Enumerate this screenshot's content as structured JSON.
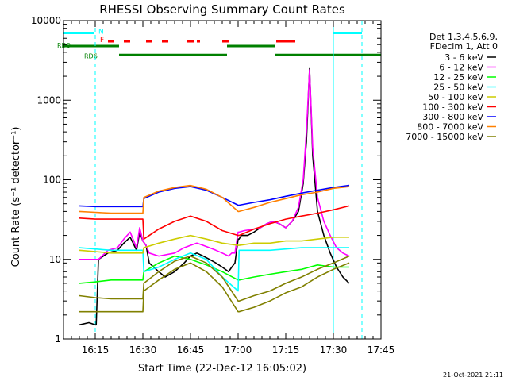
{
  "chart_data": {
    "type": "line",
    "title": "RHESSI Observing Summary Count Rates",
    "xlabel": "Start Time (22-Dec-12 16:05:02)",
    "ylabel": "Count Rate (s⁻¹ detector⁻¹)",
    "y_scale": "log",
    "ylim": [
      1,
      10000
    ],
    "xlim_minutes_after_16_05_02": [
      0,
      100
    ],
    "x_ticks": [
      {
        "label": "16:15",
        "minute": 10
      },
      {
        "label": "16:30",
        "minute": 25
      },
      {
        "label": "16:45",
        "minute": 40
      },
      {
        "label": "17:00",
        "minute": 55
      },
      {
        "label": "17:15",
        "minute": 70
      },
      {
        "label": "17:30",
        "minute": 85
      },
      {
        "label": "17:45",
        "minute": 100
      }
    ],
    "y_ticks": [
      {
        "label": "1",
        "value": 1
      },
      {
        "label": "10",
        "value": 10
      },
      {
        "label": "100",
        "value": 100
      },
      {
        "label": "1000",
        "value": 1000
      },
      {
        "label": "10000",
        "value": 10000
      }
    ],
    "legend_header": [
      "Det 1,3,4,5,6,9,",
      "FDecim 1, Att 0"
    ],
    "legend_placement": "right",
    "timestamp": "21-Oct-2021 21:11",
    "flags": [
      {
        "label": "N",
        "color": "#00ffff",
        "segments": [
          [
            0,
            9.5
          ],
          [
            85,
            94
          ]
        ],
        "level": 7000
      },
      {
        "label": "F",
        "color": "#ff0000",
        "segments": [
          [
            14,
            16
          ],
          [
            19,
            21
          ],
          [
            26,
            28
          ],
          [
            31,
            33
          ],
          [
            39,
            41
          ],
          [
            42,
            43
          ],
          [
            50,
            52
          ],
          [
            67,
            73
          ]
        ],
        "level": 5500
      },
      {
        "label": "RD0",
        "color": "#008000",
        "segments": [
          [
            0,
            17.5
          ],
          [
            51.5,
            66.5
          ]
        ],
        "level": 4800
      },
      {
        "label": "RD6",
        "color": "#008000",
        "segments": [
          [
            17.5,
            51.5
          ],
          [
            66.5,
            100
          ]
        ],
        "level": 3700
      }
    ],
    "vertical_markers": [
      {
        "minute": 10,
        "color": "#00ffff",
        "style": "dashed"
      },
      {
        "minute": 85,
        "color": "#00ffff",
        "style": "solid"
      },
      {
        "minute": 94,
        "color": "#00ffff",
        "style": "dashed"
      }
    ],
    "series": [
      {
        "name": "3 - 6 keV",
        "color": "#000000",
        "x": [
          5,
          8,
          10,
          10.3,
          11,
          14,
          17,
          19,
          21,
          23,
          24,
          25,
          26,
          27,
          30,
          32,
          35,
          38,
          40,
          42,
          44,
          46,
          48,
          50,
          52,
          53,
          54,
          55,
          55.3,
          56,
          58,
          60,
          62,
          64,
          66,
          68,
          70,
          72,
          74,
          75.5,
          76.5,
          77.5,
          78.5,
          80,
          82,
          84,
          86,
          88,
          90
        ],
        "y": [
          1.5,
          1.6,
          1.5,
          1.5,
          10,
          12,
          13,
          16,
          19,
          13,
          22,
          17,
          15,
          9,
          7,
          6,
          7,
          9,
          11,
          12,
          11,
          10,
          9,
          8,
          7,
          8,
          9,
          18,
          18,
          20,
          20,
          22,
          25,
          28,
          30,
          28,
          25,
          30,
          40,
          90,
          300,
          2500,
          200,
          40,
          20,
          12,
          8,
          6,
          5
        ]
      },
      {
        "name": "6 - 12 keV",
        "color": "#ff00ff",
        "x": [
          5,
          10,
          10.3,
          11,
          14,
          17,
          19,
          21,
          23,
          24,
          25,
          26,
          27,
          30,
          35,
          38,
          40,
          42,
          44,
          46,
          48,
          50,
          52,
          53,
          54,
          55,
          55.3,
          57,
          60,
          62,
          64,
          66,
          68,
          70,
          72,
          74,
          75.5,
          76.5,
          77.5,
          78.5,
          80,
          82,
          84,
          86,
          88,
          90
        ],
        "y": [
          10,
          10,
          10,
          10,
          13,
          14,
          18,
          22,
          14,
          25,
          17,
          15,
          12,
          11,
          12,
          14,
          15,
          16,
          15,
          14,
          13,
          12,
          11,
          12,
          12,
          22,
          22,
          23,
          24,
          25,
          28,
          30,
          28,
          25,
          30,
          45,
          100,
          400,
          2400,
          250,
          60,
          30,
          20,
          14,
          12,
          11
        ]
      },
      {
        "name": "12 - 25 keV",
        "color": "#00ff00",
        "x": [
          5,
          10,
          15,
          20,
          25,
          25.3,
          30,
          35,
          40,
          45,
          50,
          55,
          55.3,
          60,
          65,
          70,
          75,
          80,
          85,
          90
        ],
        "y": [
          5,
          5.2,
          5.5,
          5.5,
          5.5,
          7,
          9,
          11,
          10,
          8.5,
          7,
          5.5,
          5.5,
          6,
          6.5,
          7,
          7.5,
          8.5,
          8,
          8
        ]
      },
      {
        "name": "25 - 50 keV",
        "color": "#00ffff",
        "x": [
          5,
          10,
          15,
          20,
          25,
          25.3,
          30,
          35,
          40,
          45,
          50,
          55,
          55.3,
          60,
          65,
          70,
          75,
          80,
          85,
          90
        ],
        "y": [
          14,
          13.5,
          13,
          13,
          13,
          7,
          8,
          10,
          12,
          10,
          6,
          4,
          13,
          13,
          13,
          13.5,
          14,
          14,
          14,
          14
        ]
      },
      {
        "name": "50 - 100 keV",
        "color": "#cccc00",
        "x": [
          5,
          10,
          15,
          20,
          25,
          25.3,
          30,
          35,
          40,
          45,
          50,
          55,
          55.3,
          60,
          65,
          70,
          75,
          80,
          85,
          90
        ],
        "y": [
          13,
          12.5,
          12,
          12,
          12,
          14,
          16,
          18,
          20,
          18,
          16,
          15,
          15,
          16,
          16,
          17,
          17,
          18,
          19,
          19
        ]
      },
      {
        "name": "100 - 300 keV",
        "color": "#ff0000",
        "x": [
          5,
          10,
          15,
          20,
          25,
          25.3,
          30,
          35,
          40,
          45,
          50,
          55,
          55.3,
          60,
          65,
          70,
          75,
          80,
          85,
          90
        ],
        "y": [
          33,
          32,
          32,
          32,
          32,
          18,
          24,
          30,
          35,
          30,
          23,
          20,
          20,
          24,
          28,
          32,
          35,
          38,
          42,
          47
        ]
      },
      {
        "name": "300 - 800 keV",
        "color": "#0000ff",
        "x": [
          5,
          10,
          15,
          20,
          25,
          25.3,
          30,
          35,
          40,
          45,
          50,
          55,
          55.3,
          60,
          65,
          70,
          75,
          80,
          85,
          90
        ],
        "y": [
          47,
          46,
          46,
          46,
          46,
          58,
          70,
          78,
          82,
          74,
          60,
          48,
          48,
          52,
          56,
          62,
          68,
          74,
          80,
          85
        ]
      },
      {
        "name": "800 - 7000 keV",
        "color": "#ff8000",
        "x": [
          5,
          10,
          15,
          20,
          25,
          25.3,
          30,
          35,
          40,
          45,
          50,
          55,
          55.3,
          60,
          65,
          70,
          75,
          80,
          85,
          90
        ],
        "y": [
          40,
          39,
          38,
          38,
          38,
          60,
          72,
          80,
          85,
          76,
          60,
          40,
          40,
          45,
          52,
          58,
          65,
          70,
          78,
          82
        ]
      },
      {
        "name": "7000 - 15000 keV",
        "color": "#808000",
        "x": [
          5,
          10,
          15,
          20,
          25,
          25.3,
          30,
          35,
          40,
          45,
          50,
          55,
          55.3,
          60,
          65,
          70,
          75,
          80,
          85,
          90
        ],
        "y": [
          3.5,
          3.3,
          3.2,
          3.2,
          3.2,
          5,
          7,
          9.5,
          11,
          9,
          6,
          3,
          3,
          3.5,
          4,
          5,
          6,
          7.5,
          9,
          11
        ]
      },
      {
        "name": "7000 - 15000 keV",
        "color": "#808000",
        "x": [
          5,
          10,
          15,
          20,
          25,
          25.3,
          30,
          35,
          40,
          45,
          50,
          55,
          55.3,
          60,
          65,
          70,
          75,
          80,
          85,
          90
        ],
        "y": [
          2.2,
          2.2,
          2.2,
          2.2,
          2.2,
          4,
          5.5,
          7.5,
          9,
          7,
          4.5,
          2.2,
          2.2,
          2.5,
          3,
          3.8,
          4.5,
          6,
          7.5,
          9
        ]
      }
    ]
  }
}
